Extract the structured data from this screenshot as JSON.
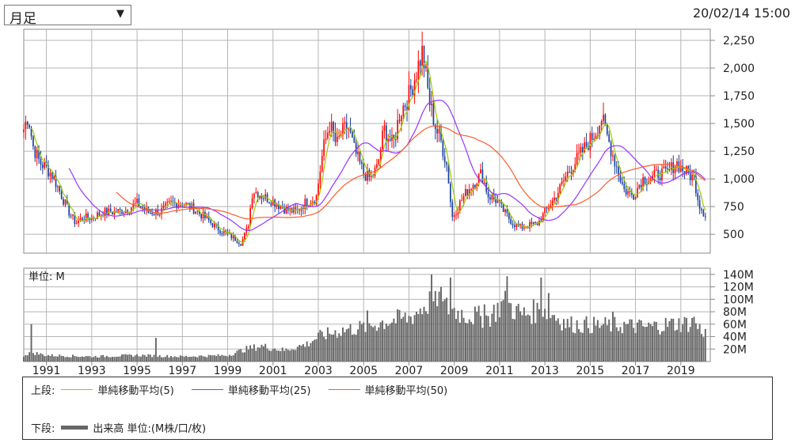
{
  "header": {
    "period_select": {
      "selected": "月足",
      "arrow": "▼"
    },
    "timestamp": "20/02/14 15:00"
  },
  "colors": {
    "up": "#ff0000",
    "down": "#1a3fa0",
    "ma5": "#99cc00",
    "ma25": "#9933ff",
    "ma50": "#ff5a2a",
    "volume": "#666666",
    "grid": "#b5b5b5"
  },
  "legend": {
    "upper_label": "上段:",
    "lower_label": "下段:",
    "ma5": "単純移動平均(5)",
    "ma25": "単純移動平均(25)",
    "ma50": "単純移動平均(50)",
    "volume": "出来高 単位:(M株/口/枚)"
  },
  "chart_data": [
    {
      "type": "candlestick",
      "interval": "monthly",
      "xlim": [
        1990,
        2020.3
      ],
      "ylim": [
        330,
        2350
      ],
      "y_ticks": [
        "2,250",
        "2,000",
        "1,750",
        "1,500",
        "1,250",
        "1,000",
        "750",
        "500"
      ],
      "y_tick_values": [
        2250,
        2000,
        1750,
        1500,
        1250,
        1000,
        750,
        500
      ],
      "grid": true,
      "anchors_close": [
        [
          1990.0,
          1450
        ],
        [
          1990.2,
          1580
        ],
        [
          1990.4,
          1300
        ],
        [
          1990.7,
          1150
        ],
        [
          1991.0,
          1100
        ],
        [
          1991.3,
          1020
        ],
        [
          1991.6,
          880
        ],
        [
          1992.0,
          700
        ],
        [
          1992.3,
          600
        ],
        [
          1992.6,
          650
        ],
        [
          1993.0,
          650
        ],
        [
          1993.5,
          700
        ],
        [
          1994.0,
          700
        ],
        [
          1994.5,
          720
        ],
        [
          1995.0,
          780
        ],
        [
          1995.5,
          700
        ],
        [
          1996.0,
          700
        ],
        [
          1996.5,
          780
        ],
        [
          1997.0,
          780
        ],
        [
          1997.5,
          730
        ],
        [
          1998.0,
          650
        ],
        [
          1998.5,
          560
        ],
        [
          1999.0,
          500
        ],
        [
          1999.4,
          450
        ],
        [
          1999.6,
          420
        ],
        [
          1999.9,
          570
        ],
        [
          2000.1,
          900
        ],
        [
          2000.5,
          850
        ],
        [
          2001.0,
          800
        ],
        [
          2001.5,
          730
        ],
        [
          2002.0,
          700
        ],
        [
          2002.5,
          800
        ],
        [
          2002.9,
          820
        ],
        [
          2003.2,
          1250
        ],
        [
          2003.5,
          1500
        ],
        [
          2003.8,
          1300
        ],
        [
          2004.0,
          1400
        ],
        [
          2004.3,
          1480
        ],
        [
          2004.6,
          1250
        ],
        [
          2005.0,
          1050
        ],
        [
          2005.3,
          1000
        ],
        [
          2005.6,
          1100
        ],
        [
          2005.9,
          1450
        ],
        [
          2006.3,
          1300
        ],
        [
          2006.6,
          1600
        ],
        [
          2007.0,
          1750
        ],
        [
          2007.3,
          1950
        ],
        [
          2007.6,
          2150
        ],
        [
          2007.9,
          1700
        ],
        [
          2008.2,
          1450
        ],
        [
          2008.4,
          1350
        ],
        [
          2008.7,
          1100
        ],
        [
          2008.9,
          650
        ],
        [
          2009.3,
          800
        ],
        [
          2009.6,
          900
        ],
        [
          2010.0,
          1000
        ],
        [
          2010.2,
          1050
        ],
        [
          2010.5,
          850
        ],
        [
          2010.9,
          800
        ],
        [
          2011.2,
          700
        ],
        [
          2011.6,
          600
        ],
        [
          2011.9,
          560
        ],
        [
          2012.3,
          580
        ],
        [
          2012.7,
          600
        ],
        [
          2013.0,
          700
        ],
        [
          2013.5,
          850
        ],
        [
          2014.0,
          1050
        ],
        [
          2014.5,
          1200
        ],
        [
          2015.0,
          1350
        ],
        [
          2015.3,
          1450
        ],
        [
          2015.5,
          1550
        ],
        [
          2015.8,
          1350
        ],
        [
          2016.1,
          1150
        ],
        [
          2016.5,
          900
        ],
        [
          2016.9,
          850
        ],
        [
          2017.3,
          1000
        ],
        [
          2017.7,
          1000
        ],
        [
          2018.0,
          1050
        ],
        [
          2018.4,
          1050
        ],
        [
          2018.8,
          1150
        ],
        [
          2019.0,
          1100
        ],
        [
          2019.3,
          1050
        ],
        [
          2019.6,
          1000
        ],
        [
          2019.8,
          780
        ],
        [
          2020.0,
          700
        ],
        [
          2020.12,
          670
        ]
      ]
    },
    {
      "type": "bar",
      "title": "単位: M",
      "xlim": [
        1990,
        2020.3
      ],
      "ylim": [
        0,
        150
      ],
      "y_ticks": [
        "140M",
        "120M",
        "100M",
        "80M",
        "60M",
        "40M",
        "20M"
      ],
      "y_tick_values": [
        140,
        120,
        100,
        80,
        60,
        40,
        20
      ],
      "x_ticks": [
        "1991",
        "1993",
        "1995",
        "1997",
        "1999",
        "2001",
        "2003",
        "2005",
        "2007",
        "2009",
        "2011",
        "2013",
        "2015",
        "2017",
        "2019"
      ],
      "x_tick_values": [
        1991,
        1993,
        1995,
        1997,
        1999,
        2001,
        2003,
        2005,
        2007,
        2009,
        2011,
        2013,
        2015,
        2017,
        2019
      ],
      "anchors_volume": [
        [
          1990.0,
          10
        ],
        [
          1990.3,
          15
        ],
        [
          1991.0,
          10
        ],
        [
          1993.0,
          8
        ],
        [
          1995.0,
          10
        ],
        [
          1997.0,
          8
        ],
        [
          1999.0,
          10
        ],
        [
          1999.8,
          20
        ],
        [
          2000.5,
          25
        ],
        [
          2001.5,
          18
        ],
        [
          2002.5,
          28
        ],
        [
          2003.0,
          40
        ],
        [
          2004.0,
          50
        ],
        [
          2005.0,
          55
        ],
        [
          2006.0,
          65
        ],
        [
          2007.0,
          70
        ],
        [
          2007.9,
          95
        ],
        [
          2008.8,
          85
        ],
        [
          2009.5,
          75
        ],
        [
          2010.5,
          70
        ],
        [
          2011.2,
          95
        ],
        [
          2012.0,
          75
        ],
        [
          2013.0,
          85
        ],
        [
          2014.0,
          60
        ],
        [
          2015.5,
          58
        ],
        [
          2016.5,
          58
        ],
        [
          2017.5,
          55
        ],
        [
          2018.5,
          60
        ],
        [
          2019.5,
          62
        ],
        [
          2020.12,
          45
        ]
      ],
      "volume_spikes": [
        [
          1990.3,
          60
        ],
        [
          1995.8,
          38
        ],
        [
          2005.2,
          82
        ],
        [
          2008.0,
          140
        ],
        [
          2008.4,
          120
        ],
        [
          2008.8,
          135
        ],
        [
          2010.3,
          92
        ],
        [
          2011.3,
          137
        ],
        [
          2012.8,
          135
        ],
        [
          2013.2,
          110
        ],
        [
          2016.0,
          80
        ],
        [
          2019.6,
          72
        ]
      ]
    }
  ]
}
